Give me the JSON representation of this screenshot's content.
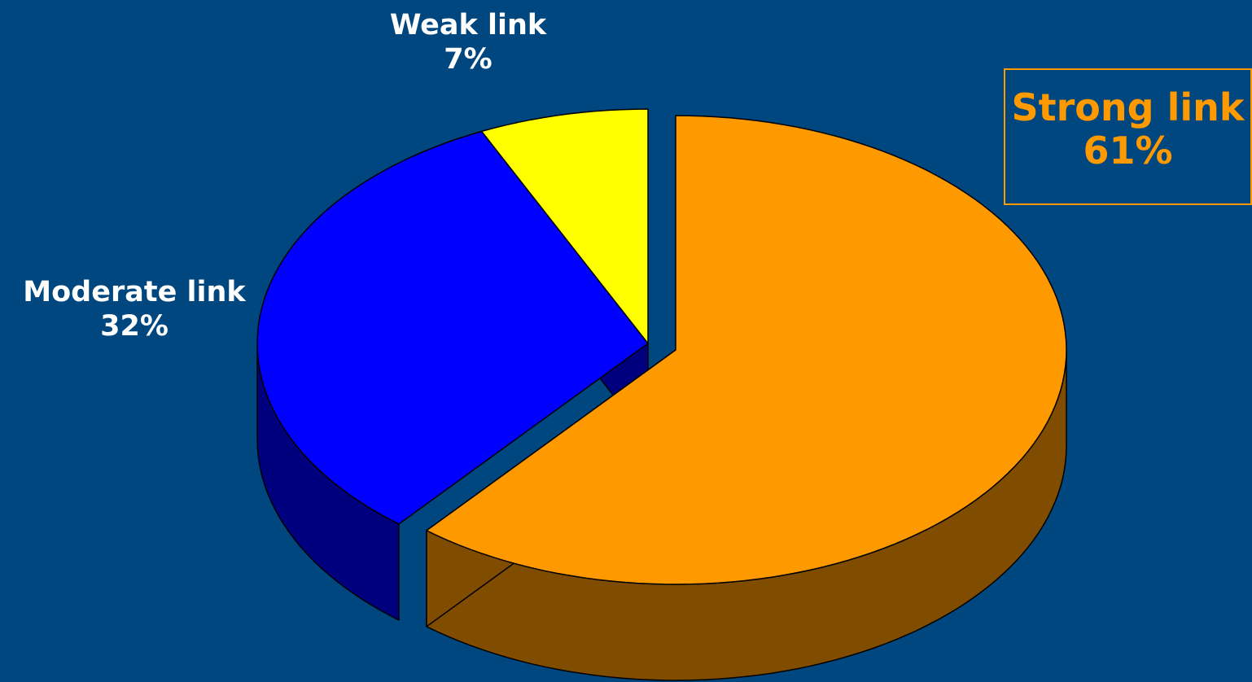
{
  "chart_data": {
    "type": "pie",
    "style": "3d-exploded",
    "slices": [
      {
        "label": "Strong link",
        "value": 61,
        "value_text": "61%",
        "color": "#ff9900",
        "side_color": "#7f4c00"
      },
      {
        "label": "Moderate link",
        "value": 32,
        "value_text": "32%",
        "color": "#0000ff",
        "side_color": "#00007f"
      },
      {
        "label": "Weak link",
        "value": 7,
        "value_text": "7%",
        "color": "#ffff00",
        "side_color": "#7f7f00"
      }
    ],
    "title": "",
    "background": "#00477f",
    "legend": "none"
  }
}
